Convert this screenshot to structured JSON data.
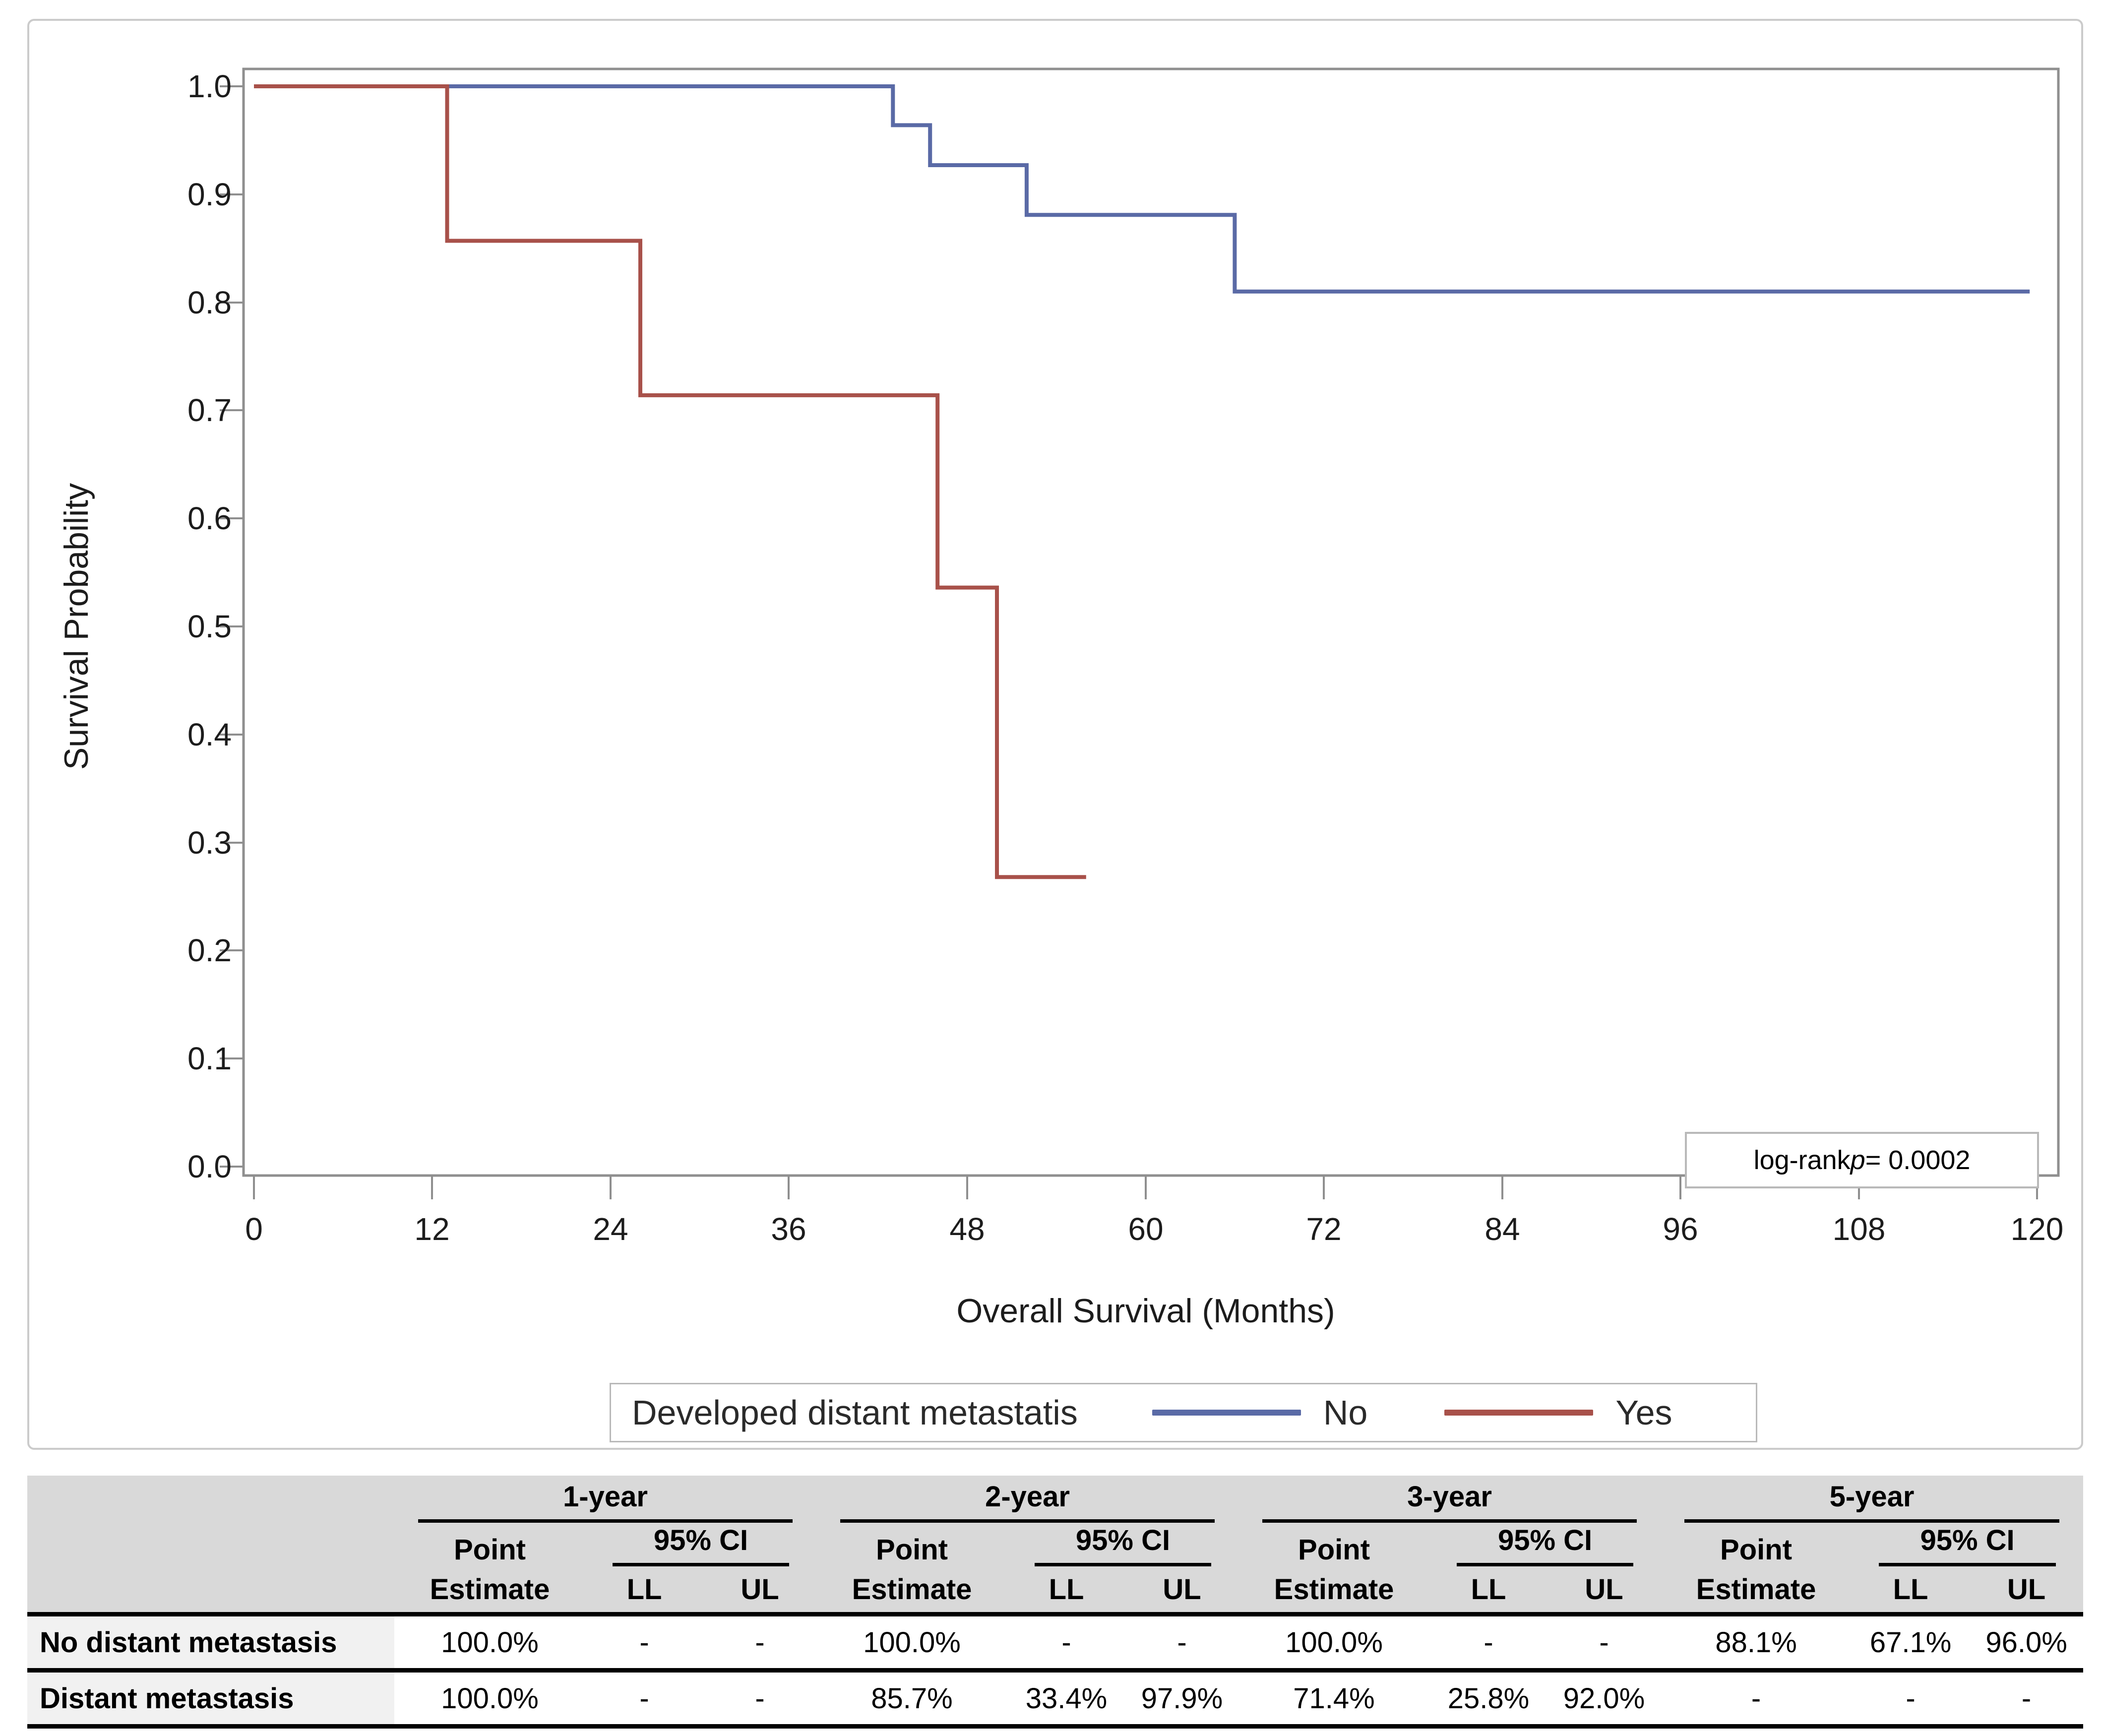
{
  "chart_data": {
    "type": "line",
    "subtype": "kaplan-meier-step",
    "title": "",
    "xlabel": "Overall Survival (Months)",
    "ylabel": "Survival Probability",
    "xlim": [
      0,
      120
    ],
    "ylim": [
      0.0,
      1.0
    ],
    "grid": false,
    "x_tick_labels": [
      "0",
      "12",
      "24",
      "36",
      "48",
      "60",
      "72",
      "84",
      "96",
      "108",
      "120"
    ],
    "y_tick_labels": [
      "1.0",
      "0.9",
      "0.8",
      "0.7",
      "0.6",
      "0.5",
      "0.4",
      "0.3",
      "0.2",
      "0.1",
      "0.0"
    ],
    "legend_title": "Developed distant metastatis",
    "legend_position": "bottom",
    "annotation": "log-rank p = 0.0002",
    "series": [
      {
        "name": "No",
        "color": "#5a6aa6",
        "points": [
          [
            0,
            1.0
          ],
          [
            43,
            1.0
          ],
          [
            43,
            0.964
          ],
          [
            45.5,
            0.964
          ],
          [
            45.5,
            0.927
          ],
          [
            52,
            0.927
          ],
          [
            52,
            0.881
          ],
          [
            66,
            0.881
          ],
          [
            66,
            0.81
          ],
          [
            119.5,
            0.81
          ]
        ]
      },
      {
        "name": "Yes",
        "color": "#a8514a",
        "points": [
          [
            0,
            1.0
          ],
          [
            13,
            1.0
          ],
          [
            13,
            0.857
          ],
          [
            26,
            0.857
          ],
          [
            26,
            0.714
          ],
          [
            46,
            0.714
          ],
          [
            46,
            0.536
          ],
          [
            50,
            0.536
          ],
          [
            50,
            0.268
          ],
          [
            56,
            0.268
          ]
        ]
      }
    ]
  },
  "plot": {
    "y_axis_title": "Survival Probability",
    "x_axis_title": "Overall Survival (Months)",
    "pvalue": {
      "prefix": "log-rank ",
      "p_symbol": "p",
      "suffix": " = 0.0002"
    },
    "legend": {
      "title": "Developed distant metastatis",
      "items": [
        {
          "label": "No"
        },
        {
          "label": "Yes"
        }
      ]
    }
  },
  "table": {
    "group_headers": [
      "1-year",
      "2-year",
      "3-year",
      "5-year"
    ],
    "sub": {
      "point": "Point",
      "estimate": "Estimate",
      "ci": "95% CI",
      "ll": "LL",
      "ul": "UL"
    },
    "rows": [
      {
        "label": "No distant metastasis",
        "cells": [
          "100.0%",
          "-",
          "-",
          "100.0%",
          "-",
          "-",
          "100.0%",
          "-",
          "-",
          "88.1%",
          "67.1%",
          "96.0%"
        ]
      },
      {
        "label": "Distant metastasis",
        "cells": [
          "100.0%",
          "-",
          "-",
          "85.7%",
          "33.4%",
          "97.9%",
          "71.4%",
          "25.8%",
          "92.0%",
          "-",
          "-",
          "-"
        ]
      }
    ]
  }
}
